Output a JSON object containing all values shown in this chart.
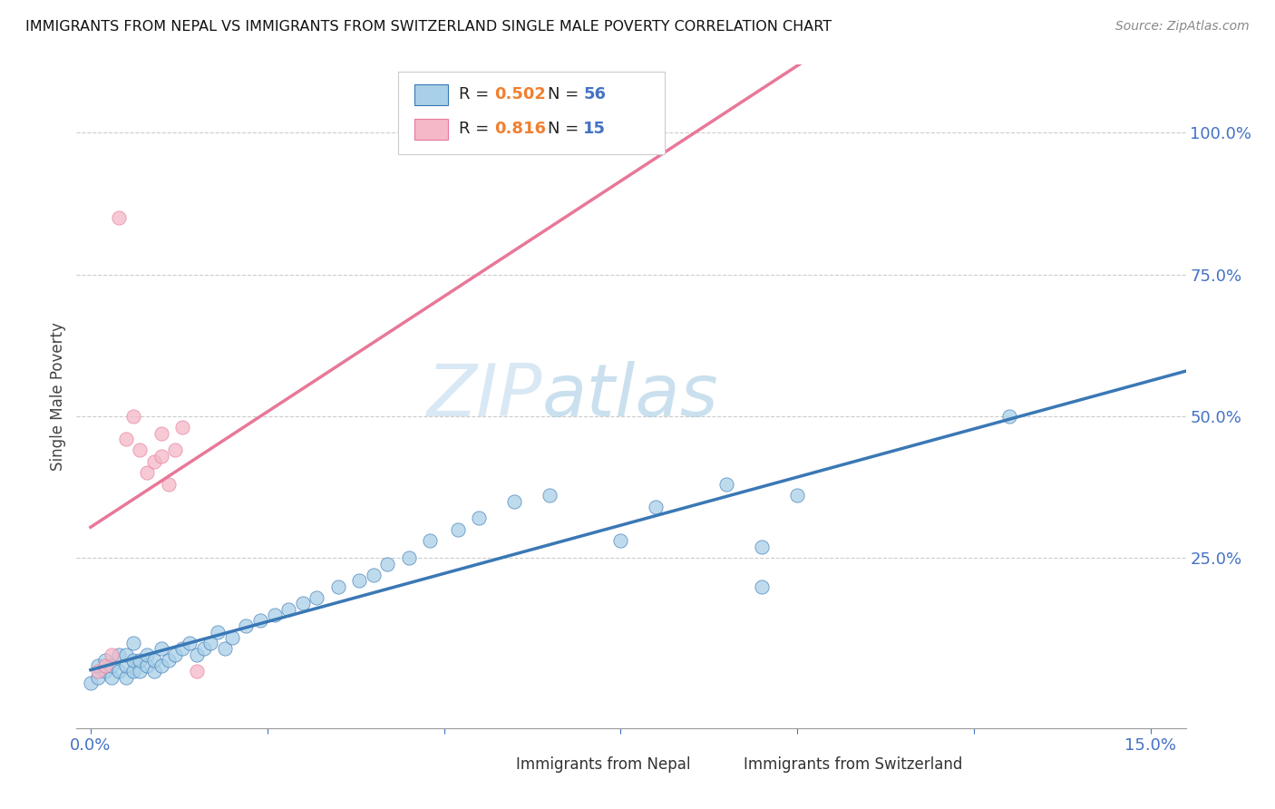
{
  "title": "IMMIGRANTS FROM NEPAL VS IMMIGRANTS FROM SWITZERLAND SINGLE MALE POVERTY CORRELATION CHART",
  "source": "Source: ZipAtlas.com",
  "ylabel": "Single Male Poverty",
  "nepal_R": 0.502,
  "nepal_N": 56,
  "swiss_R": 0.816,
  "swiss_N": 15,
  "nepal_color": "#a8d0e8",
  "swiss_color": "#f4b8c8",
  "nepal_line_color": "#3a78b5",
  "swiss_line_color": "#e87898",
  "watermark_zip": "ZIP",
  "watermark_atlas": "atlas",
  "nepal_scatter_x": [
    0.0,
    0.001,
    0.001,
    0.002,
    0.002,
    0.003,
    0.003,
    0.004,
    0.004,
    0.005,
    0.005,
    0.005,
    0.006,
    0.006,
    0.006,
    0.007,
    0.007,
    0.008,
    0.008,
    0.009,
    0.009,
    0.01,
    0.01,
    0.011,
    0.012,
    0.013,
    0.014,
    0.015,
    0.016,
    0.017,
    0.018,
    0.019,
    0.02,
    0.022,
    0.024,
    0.026,
    0.028,
    0.03,
    0.032,
    0.035,
    0.038,
    0.04,
    0.042,
    0.045,
    0.048,
    0.052,
    0.055,
    0.06,
    0.065,
    0.075,
    0.08,
    0.09,
    0.095,
    0.1,
    0.095,
    0.13
  ],
  "nepal_scatter_y": [
    0.03,
    0.04,
    0.06,
    0.05,
    0.07,
    0.04,
    0.06,
    0.05,
    0.08,
    0.04,
    0.06,
    0.08,
    0.05,
    0.07,
    0.1,
    0.05,
    0.07,
    0.06,
    0.08,
    0.05,
    0.07,
    0.06,
    0.09,
    0.07,
    0.08,
    0.09,
    0.1,
    0.08,
    0.09,
    0.1,
    0.12,
    0.09,
    0.11,
    0.13,
    0.14,
    0.15,
    0.16,
    0.17,
    0.18,
    0.2,
    0.21,
    0.22,
    0.24,
    0.25,
    0.28,
    0.3,
    0.32,
    0.35,
    0.36,
    0.28,
    0.34,
    0.38,
    0.27,
    0.36,
    0.2,
    0.5
  ],
  "swiss_scatter_x": [
    0.001,
    0.002,
    0.003,
    0.004,
    0.005,
    0.006,
    0.007,
    0.008,
    0.009,
    0.01,
    0.01,
    0.011,
    0.012,
    0.013,
    0.015
  ],
  "swiss_scatter_y": [
    0.05,
    0.06,
    0.08,
    0.85,
    0.46,
    0.5,
    0.44,
    0.4,
    0.42,
    0.43,
    0.47,
    0.38,
    0.44,
    0.48,
    0.05
  ],
  "xlim_min": 0.0,
  "xlim_max": 0.155,
  "ylim_min": -0.05,
  "ylim_max": 1.12
}
